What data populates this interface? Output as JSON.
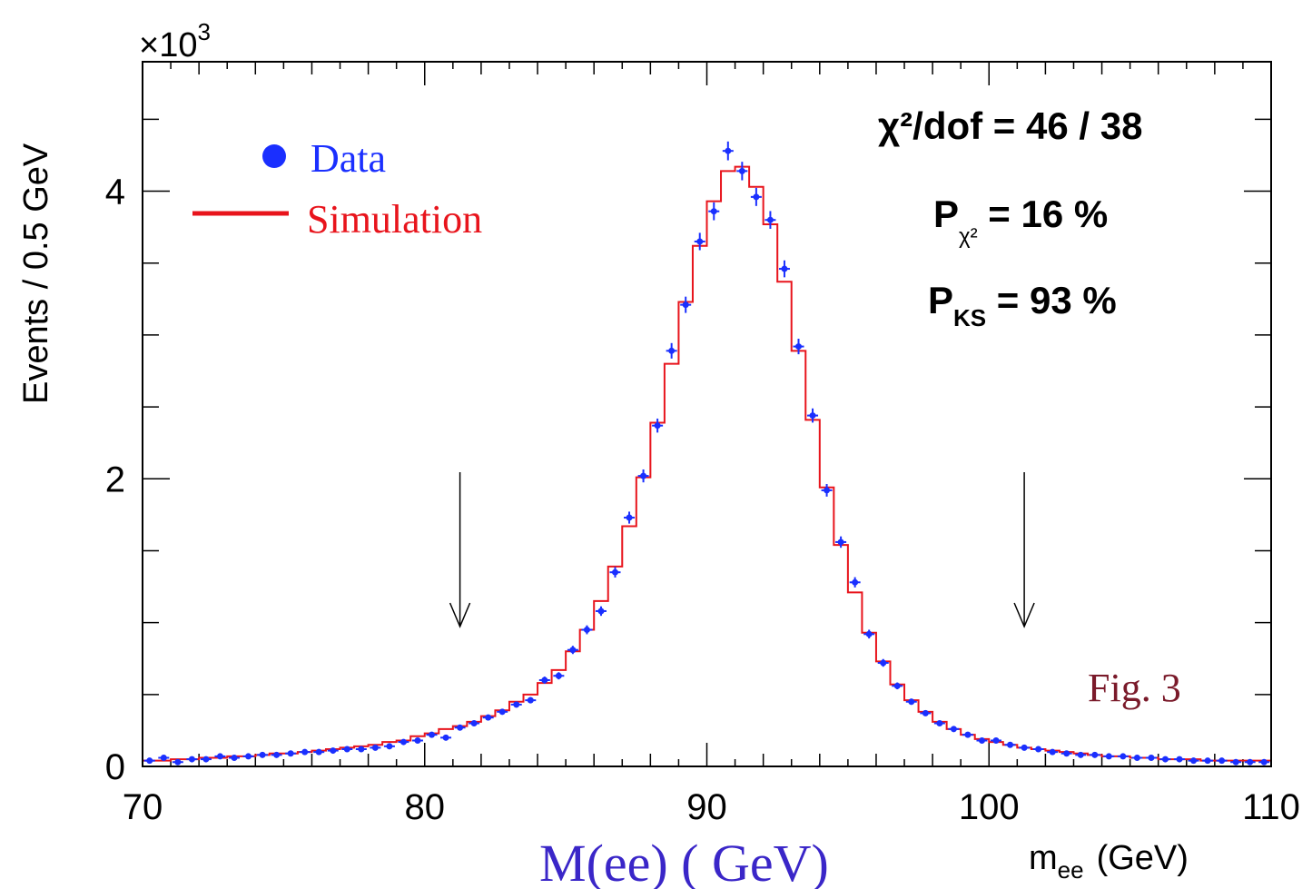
{
  "chart_data": {
    "type": "bar",
    "title": "",
    "xlabel": "M(ee) ( GeV)",
    "xlabel_axis": "m",
    "xlabel_axis_sub": "ee",
    "xlabel_axis_unit": "(GeV)",
    "ylabel": "Events / 0.5 GeV",
    "y_multiplier_prefix": "×10",
    "y_multiplier_exp": "3",
    "xlim": [
      70,
      110
    ],
    "ylim": [
      0,
      4.9
    ],
    "x_tick_labels": [
      "70",
      "80",
      "90",
      "100",
      "110"
    ],
    "y_tick_labels": [
      "0",
      "2",
      "4"
    ],
    "legend": {
      "placement": "top-left"
    },
    "series": [
      {
        "name": "Data",
        "style": "points-with-errors",
        "color": "#1a2fff",
        "x": [
          70.25,
          70.75,
          71.25,
          71.75,
          72.25,
          72.75,
          73.25,
          73.75,
          74.25,
          74.75,
          75.25,
          75.75,
          76.25,
          76.75,
          77.25,
          77.75,
          78.25,
          78.75,
          79.25,
          79.75,
          80.25,
          80.75,
          81.25,
          81.75,
          82.25,
          82.75,
          83.25,
          83.75,
          84.25,
          84.75,
          85.25,
          85.75,
          86.25,
          86.75,
          87.25,
          87.75,
          88.25,
          88.75,
          89.25,
          89.75,
          90.25,
          90.75,
          91.25,
          91.75,
          92.25,
          92.75,
          93.25,
          93.75,
          94.25,
          94.75,
          95.25,
          95.75,
          96.25,
          96.75,
          97.25,
          97.75,
          98.25,
          98.75,
          99.25,
          99.75,
          100.25,
          100.75,
          101.25,
          101.75,
          102.25,
          102.75,
          103.25,
          103.75,
          104.25,
          104.75,
          105.25,
          105.75,
          106.25,
          106.75,
          107.25,
          107.75,
          108.25,
          108.75,
          109.25,
          109.75
        ],
        "values": [
          0.04,
          0.06,
          0.03,
          0.05,
          0.05,
          0.07,
          0.06,
          0.07,
          0.08,
          0.08,
          0.09,
          0.1,
          0.1,
          0.11,
          0.12,
          0.12,
          0.13,
          0.14,
          0.17,
          0.18,
          0.22,
          0.2,
          0.27,
          0.3,
          0.34,
          0.38,
          0.43,
          0.46,
          0.6,
          0.63,
          0.81,
          0.95,
          1.08,
          1.35,
          1.73,
          2.02,
          2.37,
          2.89,
          3.21,
          3.65,
          3.86,
          4.28,
          4.14,
          3.96,
          3.8,
          3.46,
          2.92,
          2.44,
          1.92,
          1.56,
          1.28,
          0.92,
          0.72,
          0.56,
          0.45,
          0.37,
          0.3,
          0.26,
          0.22,
          0.18,
          0.18,
          0.15,
          0.13,
          0.12,
          0.1,
          0.09,
          0.08,
          0.08,
          0.07,
          0.07,
          0.06,
          0.06,
          0.05,
          0.05,
          0.04,
          0.04,
          0.04,
          0.03,
          0.03,
          0.03
        ]
      },
      {
        "name": "Simulation",
        "style": "histogram-step",
        "color": "#e8141c",
        "x": [
          70.25,
          70.75,
          71.25,
          71.75,
          72.25,
          72.75,
          73.25,
          73.75,
          74.25,
          74.75,
          75.25,
          75.75,
          76.25,
          76.75,
          77.25,
          77.75,
          78.25,
          78.75,
          79.25,
          79.75,
          80.25,
          80.75,
          81.25,
          81.75,
          82.25,
          82.75,
          83.25,
          83.75,
          84.25,
          84.75,
          85.25,
          85.75,
          86.25,
          86.75,
          87.25,
          87.75,
          88.25,
          88.75,
          89.25,
          89.75,
          90.25,
          90.75,
          91.25,
          91.75,
          92.25,
          92.75,
          93.25,
          93.75,
          94.25,
          94.75,
          95.25,
          95.75,
          96.25,
          96.75,
          97.25,
          97.75,
          98.25,
          98.75,
          99.25,
          99.75,
          100.25,
          100.75,
          101.25,
          101.75,
          102.25,
          102.75,
          103.25,
          103.75,
          104.25,
          104.75,
          105.25,
          105.75,
          106.25,
          106.75,
          107.25,
          107.75,
          108.25,
          108.75,
          109.25,
          109.75
        ],
        "values": [
          0.04,
          0.04,
          0.05,
          0.05,
          0.06,
          0.06,
          0.07,
          0.07,
          0.08,
          0.09,
          0.09,
          0.1,
          0.11,
          0.12,
          0.13,
          0.14,
          0.15,
          0.17,
          0.18,
          0.21,
          0.23,
          0.26,
          0.28,
          0.31,
          0.35,
          0.39,
          0.45,
          0.5,
          0.58,
          0.67,
          0.8,
          0.95,
          1.15,
          1.39,
          1.67,
          2.01,
          2.39,
          2.8,
          3.23,
          3.62,
          3.93,
          4.14,
          4.17,
          4.03,
          3.77,
          3.37,
          2.89,
          2.41,
          1.94,
          1.54,
          1.21,
          0.93,
          0.73,
          0.57,
          0.46,
          0.38,
          0.31,
          0.26,
          0.22,
          0.19,
          0.17,
          0.15,
          0.13,
          0.12,
          0.11,
          0.1,
          0.09,
          0.08,
          0.07,
          0.07,
          0.06,
          0.06,
          0.05,
          0.05,
          0.05,
          0.04,
          0.04,
          0.04,
          0.04,
          0.04
        ]
      }
    ],
    "arrows_at_x": [
      81.25,
      101.25
    ],
    "stats": {
      "chi2_label": "χ²/dof = 46 / 38",
      "p_chi2_main": "P",
      "p_chi2_sub": "χ²",
      "p_chi2_value": " = 16 %",
      "p_ks_main": "P",
      "p_ks_sub": "KS",
      "p_ks_value": " = 93 %"
    },
    "annotation": "Fig. 3"
  },
  "colors": {
    "data": "#1a2fff",
    "simulation": "#e8141c",
    "annotation": "#7a1a2a",
    "bottom_label": "#3a26c8"
  }
}
